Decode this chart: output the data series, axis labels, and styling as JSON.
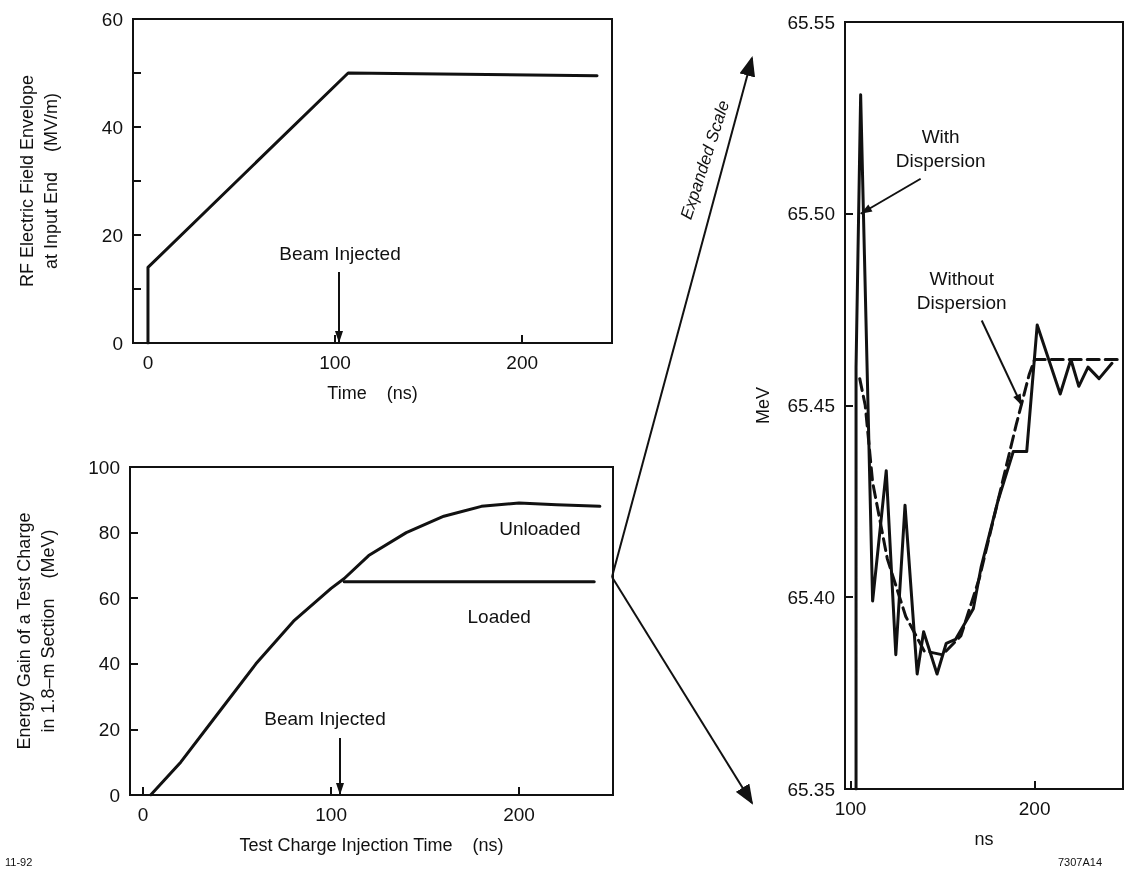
{
  "chart_data": [
    {
      "type": "line",
      "xlabel": "Time    (ns)",
      "ylabel": "RF Electric Field Envelope\nat Input End    (MV/m)",
      "xlim": [
        -8,
        248
      ],
      "xticks": [
        0,
        100,
        200
      ],
      "ylim": [
        0,
        60
      ],
      "yticks": [
        0,
        {
          "value": 10,
          "label": null
        },
        20,
        {
          "value": 30,
          "label": null
        },
        40,
        {
          "value": 50,
          "label": null
        },
        60
      ],
      "marker": "none",
      "line_style": "solid",
      "grid": false,
      "legend": false,
      "series": [
        {
          "color": "#111111",
          "x": [
            0,
            0,
            107,
            240
          ],
          "values": [
            0,
            14,
            50,
            49.5
          ]
        }
      ],
      "annotations": [
        "Beam Injected"
      ]
    },
    {
      "type": "line",
      "xlabel": "Test Charge Injection Time    (ns)",
      "ylabel": "Energy Gain of a Test Charge\nin 1.8–m Section    (MeV)",
      "xlim": [
        -7,
        250
      ],
      "xticks": [
        0,
        100,
        200
      ],
      "ylim": [
        0,
        100
      ],
      "yticks": [
        0,
        20,
        40,
        60,
        80,
        100
      ],
      "marker": "none",
      "line_style": "solid",
      "grid": false,
      "legend": false,
      "series": [
        {
          "name": "Unloaded",
          "color": "#111111",
          "x": [
            4,
            20,
            40,
            60,
            80,
            100,
            107,
            120,
            140,
            160,
            180,
            200,
            220,
            243
          ],
          "values": [
            0,
            10,
            25,
            40,
            53,
            63,
            66,
            73,
            80,
            85,
            88,
            89,
            88.5,
            88
          ]
        },
        {
          "name": "Loaded",
          "color": "#111111",
          "x": [
            107,
            240
          ],
          "values": [
            65,
            65
          ]
        }
      ],
      "annotations": [
        "Beam Injected",
        "11-92"
      ]
    },
    {
      "type": "line",
      "xlabel": "ns",
      "ylabel": "MeV",
      "xlim": [
        97,
        248
      ],
      "xticks": [
        100,
        200
      ],
      "ylim": [
        65.35,
        65.55
      ],
      "yticks": [
        65.35,
        {
          "value": 65.4,
          "label": "65.40"
        },
        65.45,
        {
          "value": 65.5,
          "label": "65.50"
        },
        65.55
      ],
      "marker": "none",
      "grid": false,
      "legend": false,
      "series": [
        {
          "color": "#111111",
          "line_style": "solid",
          "x": [
            103,
            103,
            105.5,
            112,
            119.4,
            124.6,
            129.6,
            136.2,
            139.7,
            147,
            152,
            157,
            166.7,
            171,
            180,
            188.4,
            195.7,
            201.4,
            213.9,
            219.7,
            224,
            229,
            235,
            242
          ],
          "values": [
            65.35,
            65.46,
            65.531,
            65.399,
            65.433,
            65.385,
            65.424,
            65.38,
            65.391,
            65.38,
            65.388,
            65.389,
            65.397,
            65.408,
            65.425,
            65.438,
            65.438,
            65.471,
            65.453,
            65.462,
            65.455,
            65.46,
            65.457,
            65.461
          ]
        },
        {
          "color": "#111111",
          "line_style": "dashed",
          "x": [
            105,
            108,
            112,
            120,
            130,
            140,
            150,
            160,
            170,
            180,
            190,
            197,
            200,
            248
          ],
          "values": [
            65.457,
            65.45,
            65.43,
            65.41,
            65.395,
            65.386,
            65.385,
            65.39,
            65.405,
            65.425,
            65.445,
            65.458,
            65.462,
            65.462
          ]
        }
      ],
      "annotations": [
        {
          "text": "With\nDispersion",
          "x": 105.5,
          "y": 65.5
        },
        {
          "text": "Without\nDispersion",
          "x": 193,
          "y": 65.45
        },
        "Expanded Scale",
        "7307A14"
      ]
    }
  ]
}
